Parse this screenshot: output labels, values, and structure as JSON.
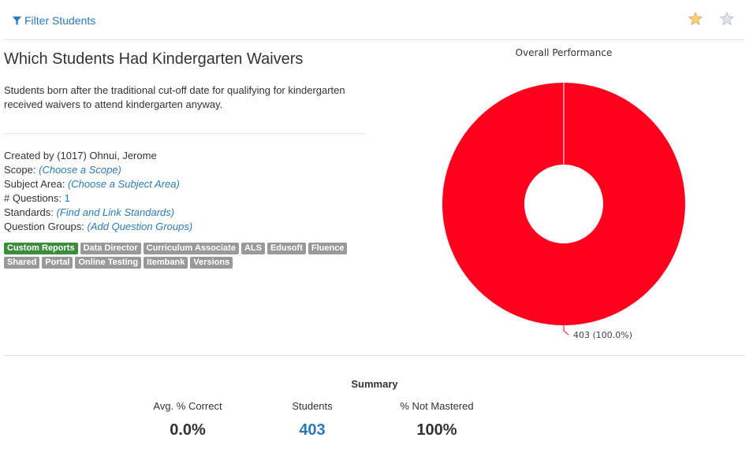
{
  "header": {
    "filter_label": "Filter Students",
    "icons": [
      "filter-icon",
      "gold-star-icon",
      "grey-star-icon"
    ]
  },
  "report": {
    "title": "Which Students Had Kindergarten Waivers",
    "description": "Students born after the traditional cut-off date for qualifying for kindergarten received waivers to attend kindergarten anyway.",
    "created_by_label": "Created by",
    "created_by_value": "(1017) Ohnui, Jerome",
    "scope_label": "Scope:",
    "scope_value": "(Choose a Scope)",
    "subject_label": "Subject Area:",
    "subject_value": "(Choose a Subject Area)",
    "questions_label": "# Questions:",
    "questions_value": "1",
    "standards_label": "Standards:",
    "standards_value": "(Find and Link Standards)",
    "groups_label": "Question Groups:",
    "groups_value": "(Add Question Groups)"
  },
  "tags": {
    "row1": [
      "Custom Reports",
      "Data Director",
      "Curriculum Associate",
      "ALS",
      "Edusoft",
      "Fluence"
    ],
    "row2": [
      "Shared",
      "Portal",
      "Online Testing",
      "Itembank",
      "Versions"
    ],
    "active_color": "#3c8c3e",
    "inactive_color": "#999999"
  },
  "chart_data": {
    "type": "pie",
    "title": "Overall Performance",
    "slices": [
      {
        "value": 403,
        "percent": 100.0,
        "color": "#ff001e"
      }
    ],
    "data_label": "403 (100.0%)"
  },
  "summary": {
    "title": "Summary",
    "avg_label": "Avg. % Correct",
    "avg_value": "0.0%",
    "students_label": "Students",
    "students_value": "403",
    "not_mastered_label": "% Not Mastered",
    "not_mastered_value": "100%"
  },
  "colors": {
    "link": "#2a7ab8",
    "donut": "#ff001e"
  }
}
